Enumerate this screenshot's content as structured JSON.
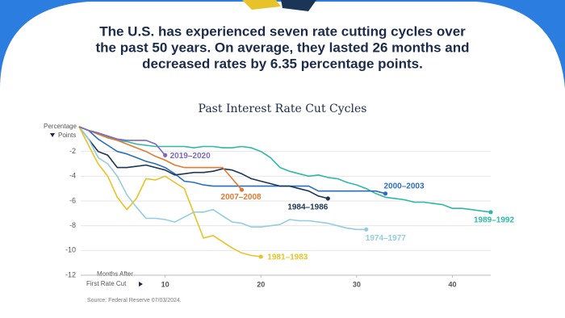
{
  "headline": [
    "The U.S. has experienced seven rate cutting cycles over",
    "the past 50 years. On average, they lasted 26 months and",
    "decreased rates by 6.35 percentage points."
  ],
  "chart_data": {
    "type": "line",
    "title": "Past Interest Rate Cut Cycles",
    "y_label": [
      "Percentage",
      "Points"
    ],
    "x_label": [
      "Months After",
      "First Rate Cut"
    ],
    "source": "Source: Federal Reserve 07/03/2024.",
    "x": [
      1,
      2,
      3,
      4,
      5,
      6,
      7,
      8,
      9,
      10,
      11,
      12,
      13,
      14,
      15,
      16,
      17,
      18,
      19,
      20,
      21,
      22,
      23,
      24,
      25,
      26,
      27,
      28,
      29,
      30,
      31,
      32,
      33,
      34,
      35,
      36,
      37,
      38,
      39,
      40,
      41,
      42,
      43,
      44
    ],
    "xlim": [
      0,
      44
    ],
    "xticks": [
      10,
      20,
      30,
      40
    ],
    "ylim": [
      -12,
      0
    ],
    "yticks": [
      -2,
      -4,
      -6,
      -8,
      -10,
      -12
    ],
    "grid": true,
    "series": [
      {
        "name": "1989–1992",
        "color": "#2fb8a6",
        "values": [
          0,
          -0.3,
          -0.5,
          -0.8,
          -1.1,
          -1.2,
          -1.4,
          -1.5,
          -1.6,
          -1.6,
          -1.6,
          -1.6,
          -1.7,
          -1.6,
          -1.6,
          -1.7,
          -1.7,
          -1.6,
          -1.7,
          -2.0,
          -2.5,
          -3.3,
          -3.6,
          -3.8,
          -4.0,
          -3.9,
          -4.1,
          -4.2,
          -4.5,
          -4.7,
          -5.0,
          -5.4,
          -5.7,
          -5.8,
          -5.9,
          -6.1,
          -6.1,
          -6.2,
          -6.3,
          -6.6,
          -6.6,
          -6.7,
          -6.8,
          -6.9
        ]
      },
      {
        "name": "2000–2003",
        "color": "#2a6ebb",
        "values": [
          0,
          -0.3,
          -1,
          -1.5,
          -2,
          -2.2,
          -2.5,
          -2.8,
          -3,
          -3.3,
          -3.8,
          -4.4,
          -4.5,
          -4.7,
          -4.8,
          -4.8,
          -4.8,
          -4.8,
          -4.8,
          -4.8,
          -4.8,
          -4.8,
          -4.8,
          -4.8,
          -4.8,
          -5.2,
          -5.2,
          -5.2,
          -5.2,
          -5.2,
          -5.2,
          -5.2,
          -5.4,
          null,
          null,
          null,
          null,
          null,
          null,
          null,
          null,
          null,
          null,
          null
        ]
      },
      {
        "name": "1984–1986",
        "color": "#1b3556",
        "values": [
          0,
          -1,
          -2,
          -2.3,
          -3.3,
          -3.3,
          -3.2,
          -3.1,
          -3.3,
          -3.5,
          -3.9,
          -3.8,
          -3.7,
          -3.7,
          -3.6,
          -3.4,
          -3.5,
          -3.8,
          -4.2,
          -4.4,
          -4.6,
          -4.8,
          -4.8,
          -5.0,
          -5.2,
          -5.6,
          -5.8,
          null,
          null,
          null,
          null,
          null,
          null,
          null,
          null,
          null,
          null,
          null,
          null,
          null,
          null,
          null,
          null,
          null
        ]
      },
      {
        "name": "1974–1977",
        "color": "#94cde0",
        "values": [
          0,
          -1,
          -2.5,
          -3,
          -4,
          -5.5,
          -6.5,
          -7.4,
          -7.4,
          -7.5,
          -7.7,
          -7.3,
          -6.9,
          -6.9,
          -6.7,
          -7.2,
          -7.7,
          -7.8,
          -8.1,
          -8.1,
          -8.0,
          -7.9,
          -7.5,
          -7.6,
          -7.6,
          -7.7,
          -7.8,
          -8,
          -8.2,
          -8.3,
          -8.3,
          null,
          null,
          null,
          null,
          null,
          null,
          null,
          null,
          null,
          null,
          null,
          null,
          null
        ]
      },
      {
        "name": "1981–1983",
        "color": "#e8c229",
        "values": [
          0,
          -1.5,
          -3,
          -4,
          -5.7,
          -6.7,
          -5.8,
          -4.2,
          -4.3,
          -4,
          -4.5,
          -5,
          -7,
          -9,
          -8.8,
          -9.3,
          -9.8,
          -10.2,
          -10.4,
          -10.5,
          null,
          null,
          null,
          null,
          null,
          null,
          null,
          null,
          null,
          null,
          null,
          null,
          null,
          null,
          null,
          null,
          null,
          null,
          null,
          null,
          null,
          null,
          null,
          null
        ]
      },
      {
        "name": "2007–2008",
        "color": "#e07a2f",
        "values": [
          0,
          -0.3,
          -0.6,
          -0.9,
          -1.1,
          -1.4,
          -1.7,
          -2.0,
          -2.4,
          -2.7,
          -3.1,
          -3.3,
          -3.3,
          -3.3,
          -3.3,
          -3.3,
          -4.2,
          -5.1,
          null,
          null,
          null,
          null,
          null,
          null,
          null,
          null,
          null,
          null,
          null,
          null,
          null,
          null,
          null,
          null,
          null,
          null,
          null,
          null,
          null,
          null,
          null,
          null,
          null,
          null
        ]
      },
      {
        "name": "2019–2020",
        "color": "#7b68c0",
        "values": [
          0,
          -0.3,
          -0.5,
          -0.75,
          -1,
          -1.1,
          -1.1,
          -1.1,
          -1.4,
          -2.3,
          null,
          null,
          null,
          null,
          null,
          null,
          null,
          null,
          null,
          null,
          null,
          null,
          null,
          null,
          null,
          null,
          null,
          null,
          null,
          null,
          null,
          null,
          null,
          null,
          null,
          null,
          null,
          null,
          null,
          null,
          null,
          null,
          null,
          null
        ]
      }
    ]
  }
}
